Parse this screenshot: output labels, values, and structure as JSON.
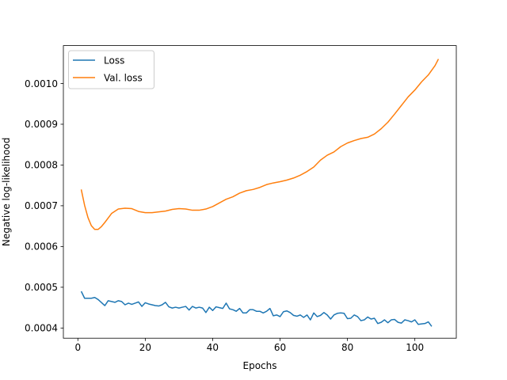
{
  "chart_data": {
    "type": "line",
    "xlabel": "Epochs",
    "ylabel": "Negative log-likelihood",
    "xlim": [
      -4.3,
      112.3
    ],
    "ylim": [
      0.000375,
      0.001093
    ],
    "xticks": [
      0,
      20,
      40,
      60,
      80,
      100
    ],
    "xtick_labels": [
      "0",
      "20",
      "40",
      "60",
      "80",
      "100"
    ],
    "yticks": [
      0.0004,
      0.0005,
      0.0006,
      0.0007,
      0.0008,
      0.0009,
      0.001
    ],
    "ytick_labels": [
      "0.0004",
      "0.0005",
      "0.0006",
      "0.0007",
      "0.0008",
      "0.0009",
      "0.0010"
    ],
    "grid": false,
    "legend_position": "upper-left",
    "series": [
      {
        "name": "Loss",
        "color": "#1f77b4",
        "points": [
          [
            1,
            0.00049
          ],
          [
            2,
            0.000473
          ],
          [
            4,
            0.000473
          ],
          [
            5,
            0.000475
          ],
          [
            6,
            0.00047
          ],
          [
            8,
            0.000455
          ],
          [
            9,
            0.000467
          ],
          [
            11,
            0.000463
          ],
          [
            12,
            0.000467
          ],
          [
            13,
            0.000465
          ],
          [
            14,
            0.000457
          ],
          [
            15,
            0.000461
          ],
          [
            16,
            0.000458
          ],
          [
            17,
            0.000461
          ],
          [
            18,
            0.000464
          ],
          [
            19,
            0.000453
          ],
          [
            20,
            0.000462
          ],
          [
            21,
            0.000459
          ],
          [
            23,
            0.000455
          ],
          [
            24,
            0.000454
          ],
          [
            25,
            0.000457
          ],
          [
            26,
            0.000463
          ],
          [
            27,
            0.000452
          ],
          [
            28,
            0.000449
          ],
          [
            29,
            0.000451
          ],
          [
            30,
            0.000449
          ],
          [
            31,
            0.000451
          ],
          [
            32,
            0.000453
          ],
          [
            33,
            0.000444
          ],
          [
            34,
            0.000453
          ],
          [
            35,
            0.000449
          ],
          [
            36,
            0.000451
          ],
          [
            37,
            0.000449
          ],
          [
            38,
            0.000438
          ],
          [
            39,
            0.000451
          ],
          [
            40,
            0.000443
          ],
          [
            41,
            0.000452
          ],
          [
            42,
            0.00045
          ],
          [
            43,
            0.000448
          ],
          [
            44,
            0.000461
          ],
          [
            45,
            0.000447
          ],
          [
            46,
            0.000445
          ],
          [
            47,
            0.000441
          ],
          [
            48,
            0.000448
          ],
          [
            49,
            0.000437
          ],
          [
            50,
            0.000437
          ],
          [
            51,
            0.000445
          ],
          [
            52,
            0.000445
          ],
          [
            53,
            0.000441
          ],
          [
            54,
            0.000441
          ],
          [
            55,
            0.000437
          ],
          [
            56,
            0.000441
          ],
          [
            57,
            0.000448
          ],
          [
            58,
            0.00043
          ],
          [
            59,
            0.000432
          ],
          [
            60,
            0.000428
          ],
          [
            61,
            0.00044
          ],
          [
            62,
            0.000442
          ],
          [
            63,
            0.000438
          ],
          [
            64,
            0.000431
          ],
          [
            65,
            0.000429
          ],
          [
            66,
            0.000432
          ],
          [
            67,
            0.000426
          ],
          [
            68,
            0.000432
          ],
          [
            69,
            0.00042
          ],
          [
            70,
            0.000437
          ],
          [
            71,
            0.000428
          ],
          [
            72,
            0.000431
          ],
          [
            73,
            0.000438
          ],
          [
            74,
            0.000432
          ],
          [
            75,
            0.000422
          ],
          [
            76,
            0.000432
          ],
          [
            77,
            0.000436
          ],
          [
            78,
            0.000437
          ],
          [
            79,
            0.000436
          ],
          [
            80,
            0.000423
          ],
          [
            81,
            0.000424
          ],
          [
            82,
            0.000432
          ],
          [
            83,
            0.000428
          ],
          [
            84,
            0.000418
          ],
          [
            85,
            0.00042
          ],
          [
            86,
            0.000427
          ],
          [
            87,
            0.000422
          ],
          [
            88,
            0.000424
          ],
          [
            89,
            0.000411
          ],
          [
            90,
            0.000414
          ],
          [
            91,
            0.00042
          ],
          [
            92,
            0.000413
          ],
          [
            93,
            0.00042
          ],
          [
            94,
            0.000421
          ],
          [
            95,
            0.000414
          ],
          [
            96,
            0.000412
          ],
          [
            97,
            0.00042
          ],
          [
            98,
            0.000418
          ],
          [
            99,
            0.000415
          ],
          [
            100,
            0.00042
          ],
          [
            101,
            0.000409
          ],
          [
            102,
            0.00041
          ],
          [
            103,
            0.000411
          ],
          [
            104,
            0.000415
          ],
          [
            105,
            0.000404
          ]
        ]
      },
      {
        "name": "Val. loss",
        "color": "#ff7f0e",
        "points": [
          [
            1,
            0.00074
          ],
          [
            2,
            0.000701
          ],
          [
            3,
            0.000671
          ],
          [
            4,
            0.000651
          ],
          [
            5,
            0.000642
          ],
          [
            6,
            0.000642
          ],
          [
            7,
            0.000649
          ],
          [
            8,
            0.000659
          ],
          [
            10,
            0.000681
          ],
          [
            12,
            0.000692
          ],
          [
            14,
            0.000694
          ],
          [
            16,
            0.000693
          ],
          [
            18,
            0.000686
          ],
          [
            20,
            0.000683
          ],
          [
            22,
            0.000683
          ],
          [
            24,
            0.000685
          ],
          [
            26,
            0.000687
          ],
          [
            28,
            0.000691
          ],
          [
            30,
            0.000693
          ],
          [
            32,
            0.000692
          ],
          [
            34,
            0.000689
          ],
          [
            36,
            0.000689
          ],
          [
            38,
            0.000692
          ],
          [
            40,
            0.000698
          ],
          [
            42,
            0.000707
          ],
          [
            44,
            0.000716
          ],
          [
            46,
            0.000722
          ],
          [
            48,
            0.000731
          ],
          [
            50,
            0.000737
          ],
          [
            52,
            0.00074
          ],
          [
            54,
            0.000745
          ],
          [
            56,
            0.000752
          ],
          [
            58,
            0.000756
          ],
          [
            60,
            0.000759
          ],
          [
            62,
            0.000763
          ],
          [
            64,
            0.000768
          ],
          [
            66,
            0.000775
          ],
          [
            68,
            0.000784
          ],
          [
            70,
            0.000795
          ],
          [
            72,
            0.000812
          ],
          [
            74,
            0.000824
          ],
          [
            76,
            0.000832
          ],
          [
            78,
            0.000845
          ],
          [
            80,
            0.000854
          ],
          [
            82,
            0.00086
          ],
          [
            84,
            0.000865
          ],
          [
            86,
            0.000868
          ],
          [
            88,
            0.000876
          ],
          [
            90,
            0.000889
          ],
          [
            92,
            0.000905
          ],
          [
            94,
            0.000925
          ],
          [
            96,
            0.000946
          ],
          [
            98,
            0.000967
          ],
          [
            100,
            0.000984
          ],
          [
            102,
            0.001004
          ],
          [
            104,
            0.001021
          ],
          [
            106,
            0.001044
          ],
          [
            107,
            0.00106
          ]
        ]
      }
    ]
  }
}
